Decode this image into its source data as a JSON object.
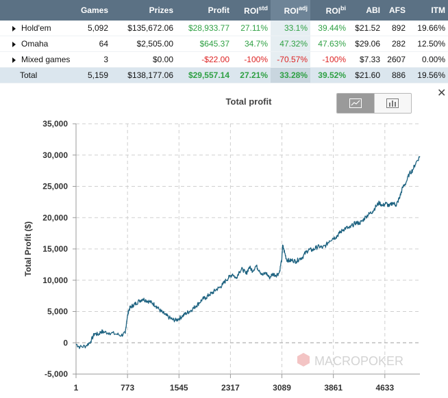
{
  "table": {
    "headers": {
      "games": "Games",
      "prizes": "Prizes",
      "profit": "Profit",
      "roi_std_base": "ROI",
      "roi_std_sup": "std",
      "roi_adj_base": "ROI",
      "roi_adj_sup": "adj",
      "roi_bi_base": "ROI",
      "roi_bi_sup": "bi",
      "abi": "ABI",
      "afs": "AFS",
      "itm": "ITM"
    },
    "rows": [
      {
        "name": "Hold'em",
        "games": "5,092",
        "prizes": "$135,672.06",
        "profit": "$28,933.77",
        "roi_std": "27.11%",
        "roi_adj": "33.1%",
        "roi_bi": "39.44%",
        "abi": "$21.52",
        "afs": "892",
        "itm": "19.66%"
      },
      {
        "name": "Omaha",
        "games": "64",
        "prizes": "$2,505.00",
        "profit": "$645.37",
        "roi_std": "34.7%",
        "roi_adj": "47.32%",
        "roi_bi": "47.63%",
        "abi": "$29.06",
        "afs": "282",
        "itm": "12.50%"
      },
      {
        "name": "Mixed games",
        "games": "3",
        "prizes": "$0.00",
        "profit": "-$22.00",
        "roi_std": "-100%",
        "roi_adj": "-70.57%",
        "roi_bi": "-100%",
        "abi": "$7.33",
        "afs": "2607",
        "itm": "0.00%"
      }
    ],
    "total": {
      "name": "Total",
      "games": "5,159",
      "prizes": "$138,177.06",
      "profit": "$29,557.14",
      "roi_std": "27.21%",
      "roi_adj": "33.28%",
      "roi_bi": "39.52%",
      "abi": "$21.60",
      "afs": "886",
      "itm": "19.56%"
    }
  },
  "watermark": "MACROPOKER",
  "colors": {
    "line": "#1d6280",
    "positive": "#2ea043",
    "negative": "#dd2222",
    "header": "#5b7184"
  },
  "chart_data": {
    "type": "line",
    "title": "Total profit",
    "xlabel": "",
    "ylabel": "Total Profit ($)",
    "xlim": [
      1,
      5159
    ],
    "ylim": [
      -5000,
      35000
    ],
    "xticks": [
      1,
      773,
      1545,
      2317,
      3089,
      3861,
      4633
    ],
    "xtick_labels": [
      "1",
      "773",
      "1545",
      "2317",
      "3089",
      "3861",
      "4633"
    ],
    "yticks": [
      -5000,
      0,
      5000,
      10000,
      15000,
      20000,
      25000,
      30000,
      35000
    ],
    "ytick_labels": [
      "-5,000",
      "0",
      "5,000",
      "10,000",
      "15,000",
      "20,000",
      "25,000",
      "30,000",
      "35,000"
    ],
    "grid": true,
    "series": [
      {
        "name": "Total profit",
        "x": [
          1,
          60,
          150,
          220,
          280,
          330,
          380,
          420,
          500,
          600,
          680,
          740,
          760,
          790,
          820,
          860,
          900,
          950,
          1000,
          1050,
          1100,
          1150,
          1200,
          1250,
          1300,
          1350,
          1400,
          1450,
          1500,
          1550,
          1600,
          1650,
          1700,
          1750,
          1800,
          1850,
          1900,
          1950,
          2000,
          2050,
          2100,
          2150,
          2200,
          2250,
          2300,
          2350,
          2400,
          2450,
          2500,
          2550,
          2600,
          2650,
          2700,
          2750,
          2800,
          2850,
          2900,
          2950,
          3000,
          3050,
          3089,
          3100,
          3130,
          3160,
          3200,
          3250,
          3300,
          3350,
          3400,
          3450,
          3500,
          3550,
          3600,
          3650,
          3700,
          3750,
          3800,
          3850,
          3900,
          3950,
          4000,
          4050,
          4100,
          4150,
          4200,
          4250,
          4300,
          4350,
          4400,
          4450,
          4500,
          4550,
          4600,
          4650,
          4700,
          4750,
          4800,
          4830,
          4860,
          4900,
          4950,
          5000,
          5050,
          5100,
          5159
        ],
        "y": [
          -200,
          -700,
          -500,
          200,
          1500,
          1300,
          1800,
          1700,
          1600,
          1400,
          1200,
          1500,
          3500,
          5200,
          5700,
          6000,
          6300,
          6700,
          7000,
          6800,
          6600,
          6300,
          5900,
          5300,
          4800,
          4400,
          4000,
          3700,
          3600,
          3900,
          4300,
          4700,
          5000,
          5400,
          5900,
          6400,
          7000,
          7200,
          7700,
          8000,
          8500,
          8800,
          9300,
          10000,
          10500,
          11000,
          10300,
          11400,
          11800,
          11000,
          12100,
          11500,
          12300,
          11600,
          10800,
          11200,
          10400,
          11000,
          10800,
          11200,
          13500,
          15600,
          14400,
          13300,
          13100,
          13200,
          13000,
          13400,
          13700,
          14500,
          14900,
          14800,
          15200,
          15400,
          15200,
          15600,
          16300,
          16700,
          16900,
          17500,
          18000,
          18400,
          18300,
          18800,
          19200,
          19100,
          19500,
          20200,
          20600,
          21000,
          21800,
          22400,
          21900,
          22300,
          21800,
          22400,
          22000,
          22600,
          23400,
          24800,
          25600,
          27000,
          27600,
          28800,
          29800
        ]
      }
    ]
  }
}
